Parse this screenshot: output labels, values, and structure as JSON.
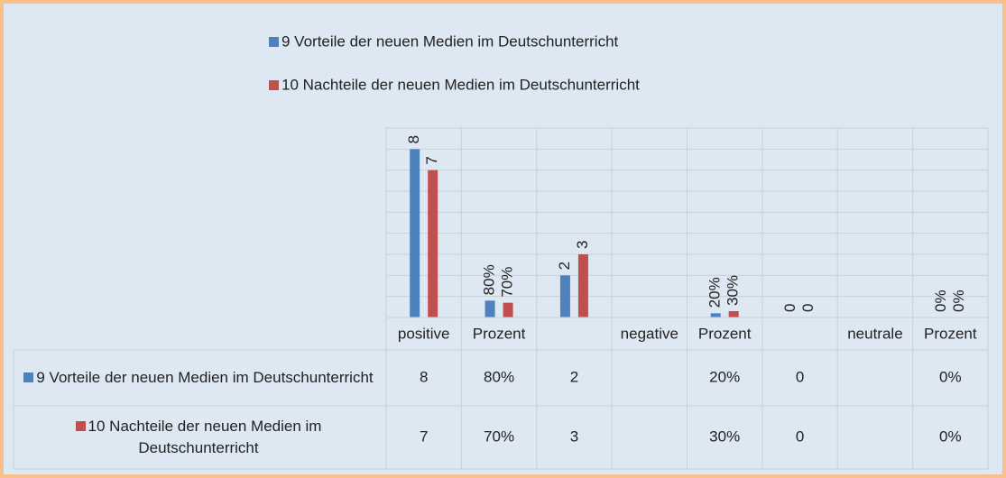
{
  "chart_data": {
    "type": "bar",
    "categories": [
      "positive",
      "Prozent",
      null,
      "negative",
      "Prozent",
      null,
      "neutrale",
      "Prozent"
    ],
    "series": [
      {
        "name": "9 Vorteile der neuen Medien im Deutschunterricht",
        "color": "#4f81bd",
        "values": [
          8,
          0.8,
          2,
          null,
          0.2,
          0,
          null,
          0
        ],
        "value_labels": [
          "8",
          "80%",
          "2",
          null,
          "20%",
          "0",
          null,
          "0%"
        ]
      },
      {
        "name": "10 Nachteile der neuen Medien im Deutschunterricht",
        "color": "#c0504d",
        "values": [
          7,
          0.7,
          3,
          null,
          0.3,
          0,
          null,
          0
        ],
        "value_labels": [
          "7",
          "70%",
          "3",
          null,
          "30%",
          "0",
          null,
          "0%"
        ]
      }
    ],
    "ylim": [
      0,
      9
    ],
    "yticks": [
      0,
      1,
      2,
      3,
      4,
      5,
      6,
      7,
      8,
      9
    ],
    "grid": true,
    "legend": "top",
    "data_table": true
  }
}
